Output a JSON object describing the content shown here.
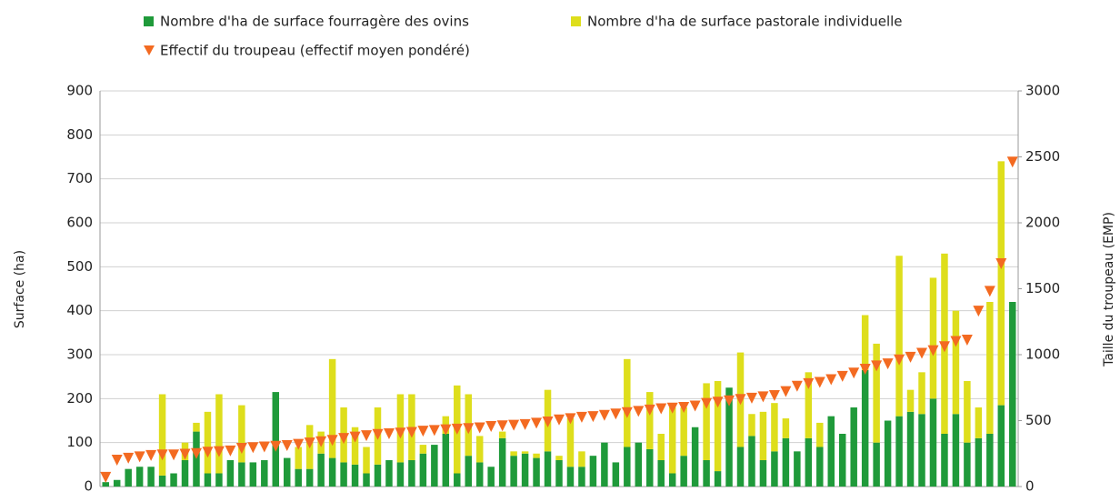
{
  "chart_data": {
    "type": "bar",
    "stacked": true,
    "y_label": "Surface (ha)",
    "y2_label": "Taille du troupeau (EMP)",
    "categories": [
      null,
      null,
      null,
      null,
      null,
      null,
      null,
      null,
      null,
      null,
      null,
      null,
      null,
      null,
      null,
      null,
      null,
      null,
      null,
      null,
      null,
      null,
      null,
      null,
      null,
      null,
      null,
      null,
      null,
      null,
      null,
      null,
      null,
      null,
      null,
      null,
      null,
      null,
      null,
      null,
      null,
      null,
      null,
      null,
      null,
      null,
      null,
      null,
      null,
      null,
      null,
      null,
      null,
      null,
      null,
      null,
      null,
      null,
      null,
      null,
      null,
      null,
      null,
      null,
      null,
      null,
      null,
      null,
      null,
      null,
      null,
      null,
      null,
      null,
      null,
      null,
      null,
      null,
      null,
      null,
      null
    ],
    "ylim": [
      0,
      900
    ],
    "yticks": [
      0,
      100,
      200,
      300,
      400,
      500,
      600,
      700,
      800,
      900
    ],
    "y2lim": [
      0,
      3000
    ],
    "y2ticks": [
      0,
      500,
      1000,
      1500,
      2000,
      2500,
      3000
    ],
    "grid": true,
    "legend": "top",
    "series": [
      {
        "name": "Nombre d'ha de surface fourragère des ovins",
        "color": "#1f9a3a",
        "values": [
          10,
          15,
          40,
          45,
          45,
          25,
          30,
          60,
          125,
          30,
          30,
          60,
          55,
          55,
          60,
          215,
          65,
          40,
          40,
          75,
          65,
          55,
          50,
          30,
          50,
          60,
          55,
          60,
          75,
          95,
          120,
          30,
          70,
          55,
          45,
          110,
          70,
          75,
          65,
          80,
          60,
          45,
          45,
          70,
          100,
          55,
          90,
          100,
          85,
          60,
          30,
          70,
          135,
          60,
          35,
          225,
          90,
          115,
          60,
          80,
          110,
          80,
          110,
          90,
          160,
          120,
          180,
          265,
          100,
          150,
          160,
          170,
          165,
          200,
          120,
          165,
          100,
          110,
          120,
          185,
          420
        ]
      },
      {
        "name": "Nombre d'ha de surface pastorale individuelle",
        "color": "#dede1c",
        "values": [
          0,
          0,
          0,
          0,
          0,
          185,
          0,
          40,
          20,
          140,
          180,
          0,
          130,
          0,
          0,
          0,
          0,
          50,
          100,
          50,
          225,
          125,
          85,
          60,
          130,
          0,
          155,
          150,
          20,
          0,
          40,
          200,
          140,
          60,
          0,
          15,
          10,
          5,
          10,
          140,
          10,
          110,
          35,
          0,
          0,
          0,
          200,
          0,
          130,
          60,
          150,
          110,
          0,
          175,
          205,
          0,
          215,
          50,
          110,
          110,
          45,
          0,
          150,
          55,
          0,
          0,
          0,
          125,
          225,
          0,
          365,
          50,
          95,
          275,
          410,
          235,
          140,
          70,
          300,
          555,
          0
        ]
      },
      {
        "name": "Effectif du troupeau (effectif moyen pondéré)",
        "color": "#f36a21",
        "axis": "y2",
        "marker": "triangle-down",
        "values": [
          70,
          200,
          215,
          225,
          235,
          240,
          240,
          245,
          250,
          260,
          265,
          270,
          290,
          295,
          300,
          305,
          310,
          320,
          330,
          340,
          350,
          365,
          375,
          385,
          395,
          400,
          405,
          410,
          420,
          425,
          430,
          435,
          440,
          445,
          455,
          460,
          465,
          470,
          480,
          490,
          505,
          515,
          525,
          530,
          540,
          550,
          560,
          570,
          580,
          590,
          595,
          600,
          610,
          630,
          640,
          650,
          660,
          670,
          680,
          690,
          720,
          760,
          780,
          790,
          810,
          835,
          860,
          890,
          915,
          930,
          960,
          980,
          1010,
          1030,
          1060,
          1100,
          1110,
          1330,
          1480,
          1690,
          2460
        ]
      }
    ]
  }
}
